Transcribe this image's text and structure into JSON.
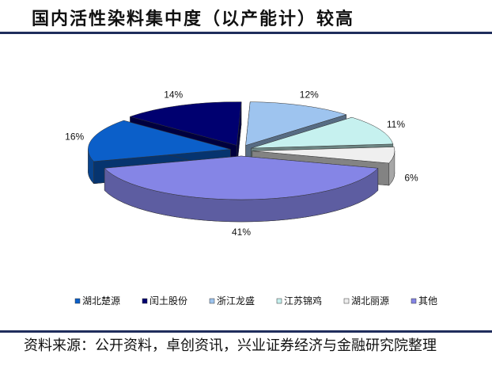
{
  "chart_data": {
    "type": "pie",
    "title": "国内活性染料集中度（以产能计）较高",
    "categories": [
      "湖北楚源",
      "闰土股份",
      "浙江龙盛",
      "江苏锦鸡",
      "湖北丽源",
      "其他"
    ],
    "values": [
      16,
      14,
      12,
      11,
      6,
      41
    ],
    "value_labels": [
      "16%",
      "14%",
      "12%",
      "11%",
      "6%",
      "41%"
    ],
    "colors": [
      "#0b5fc9",
      "#000070",
      "#9ec4ef",
      "#c6f1ef",
      "#efefef",
      "#8585e6"
    ],
    "legend": "bottom",
    "source": "资料来源：公开资料，卓创资讯，兴业证券经济与金融研究院整理"
  }
}
